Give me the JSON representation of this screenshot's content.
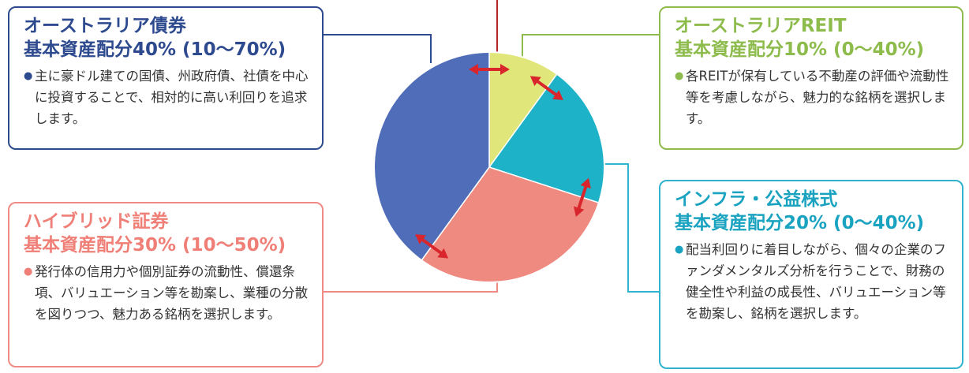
{
  "colors": {
    "bonds": "#4f6db8",
    "reit": "#e1e67a",
    "infra": "#1eb2c8",
    "hybrid": "#ef8a80",
    "arrow": "#d8262c",
    "bonds_border": "#2e4a8f",
    "reit_border": "#8dbb4c",
    "infra_border": "#2fb3cf",
    "hybrid_border": "#f08a84"
  },
  "chart_data": {
    "type": "pie",
    "series": [
      {
        "name": "オーストラリアREIT",
        "value": 10
      },
      {
        "name": "インフラ・公益株式",
        "value": 20
      },
      {
        "name": "ハイブリッド証券",
        "value": 30
      },
      {
        "name": "オーストラリア債券",
        "value": 40
      }
    ],
    "start_angle_deg": 0,
    "direction": "clockwise"
  },
  "boxes": {
    "bonds": {
      "name": "オーストラリア債券",
      "alloc": "基本資産配分40% (10～70%)",
      "bullet": "●",
      "desc": "主に豪ドル建ての国債、州政府債、社債を中心に投資することで、相対的に高い利回りを追求します。"
    },
    "reit": {
      "name": "オーストラリアREIT",
      "alloc": "基本資産配分10% (0～40%)",
      "bullet": "●",
      "desc": "各REITが保有している不動産の評価や流動性等を考慮しながら、魅力的な銘柄を選択します。"
    },
    "infra": {
      "name": "インフラ・公益株式",
      "alloc": "基本資産配分20% (0～40%)",
      "bullet": "●",
      "desc": "配当利回りに着目しながら、個々の企業のファンダメンタルズ分析を行うことで、財務の健全性や利益の成長性、バリュエーション等を勘案し、銘柄を選択します。"
    },
    "hybrid": {
      "name": "ハイブリッド証券",
      "alloc": "基本資産配分30% (10～50%)",
      "bullet": "●",
      "desc": "発行体の信用力や個別証券の流動性、償還条項、バリュエーション等を勘案し、業種の分散を図りつつ、魅力ある銘柄を選択します。"
    }
  }
}
